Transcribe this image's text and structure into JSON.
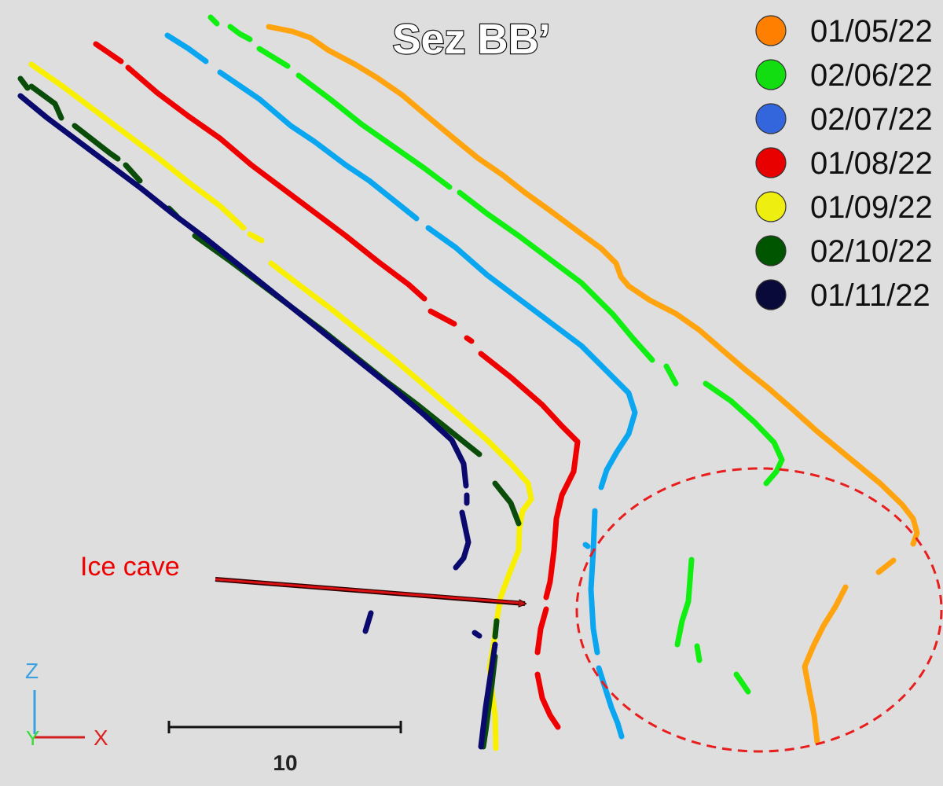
{
  "title": "Sez BB’",
  "legend": [
    {
      "date": "01/05/22",
      "color": "#ff7f00",
      "line_color": "#ffa30f"
    },
    {
      "date": "02/06/22",
      "color": "#11dd11",
      "line_color": "#11ee11"
    },
    {
      "date": "02/07/22",
      "color": "#3366dd",
      "line_color": "#0aa6f0"
    },
    {
      "date": "01/08/22",
      "color": "#e80000",
      "line_color": "#ee0000"
    },
    {
      "date": "01/09/22",
      "color": "#eeee11",
      "line_color": "#f8f000"
    },
    {
      "date": "02/10/22",
      "color": "#005500",
      "line_color": "#0a4c0a"
    },
    {
      "date": "01/11/22",
      "color": "#0a0a3a",
      "line_color": "#0a0a6e"
    }
  ],
  "annotation": {
    "text": "Ice cave",
    "color": "#ee0000"
  },
  "scale_bar": {
    "label": "10"
  },
  "axes": {
    "z_label": "Z",
    "y_label": "Y",
    "x_label": "X"
  },
  "highlight": {
    "color": "#e81e1e"
  }
}
